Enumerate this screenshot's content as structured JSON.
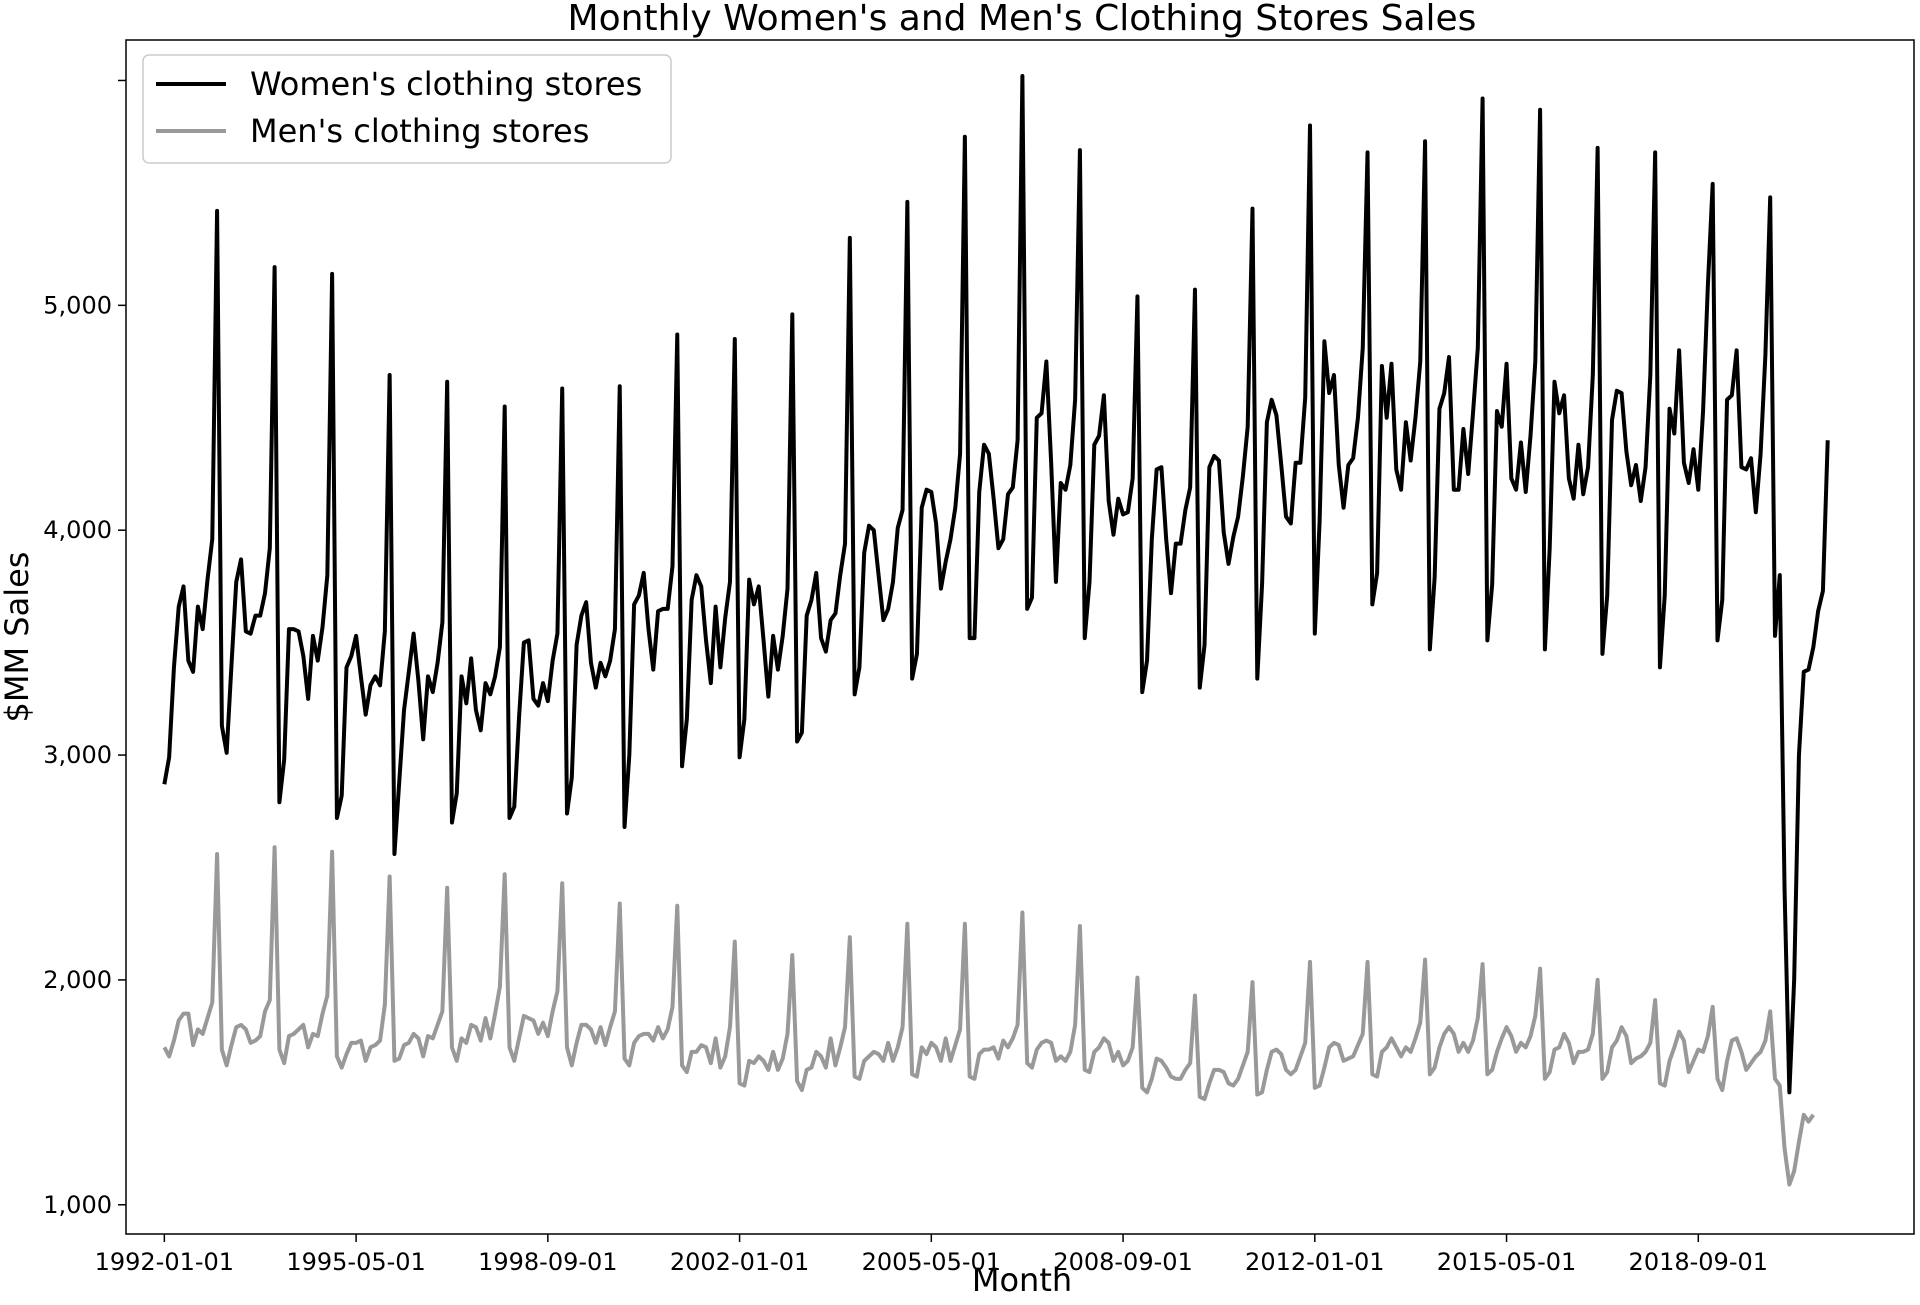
{
  "chart_data": {
    "type": "line",
    "title": "Monthly Women's and Men's Clothing Stores Sales",
    "xlabel": "Month",
    "ylabel": "$MM Sales",
    "x_start": "1992-01",
    "x_ticks": [
      "1992-01-01",
      "1995-05-01",
      "1998-09-01",
      "2002-01-01",
      "2005-05-01",
      "2008-09-01",
      "2012-01-01",
      "2015-05-01",
      "2018-09-01"
    ],
    "y_ticks": [
      1000,
      2000,
      3000,
      4000,
      5000
    ],
    "y_tick_labels": [
      "1,000",
      "2,000",
      "3,000",
      "4,000",
      "5,000"
    ],
    "ylim": [
      870,
      6180
    ],
    "xlim": [
      "1991-05",
      "2022-06"
    ],
    "grid": false,
    "legend_position": "top-left",
    "series": [
      {
        "name": "Women's clothing stores",
        "color": "#000000",
        "values": [
          2870,
          2990,
          3390,
          3660,
          3750,
          3420,
          3370,
          3660,
          3560,
          3780,
          3960,
          5420,
          3130,
          3010,
          3400,
          3770,
          3870,
          3550,
          3540,
          3620,
          3620,
          3720,
          3920,
          5170,
          2790,
          2980,
          3560,
          3560,
          3550,
          3440,
          3250,
          3530,
          3420,
          3570,
          3800,
          5140,
          2720,
          2820,
          3390,
          3440,
          3530,
          3350,
          3180,
          3310,
          3350,
          3310,
          3550,
          4690,
          2560,
          2880,
          3200,
          3370,
          3540,
          3330,
          3070,
          3350,
          3280,
          3410,
          3590,
          4660,
          2700,
          2830,
          3350,
          3230,
          3430,
          3200,
          3110,
          3320,
          3270,
          3350,
          3480,
          4550,
          2720,
          2770,
          3170,
          3500,
          3510,
          3250,
          3220,
          3320,
          3240,
          3420,
          3540,
          4630,
          2740,
          2900,
          3490,
          3620,
          3680,
          3410,
          3300,
          3410,
          3350,
          3420,
          3560,
          4640,
          2680,
          3000,
          3670,
          3710,
          3810,
          3560,
          3380,
          3640,
          3650,
          3650,
          3840,
          4870,
          2950,
          3160,
          3690,
          3800,
          3750,
          3510,
          3320,
          3660,
          3390,
          3610,
          3770,
          4850,
          2990,
          3160,
          3780,
          3670,
          3750,
          3510,
          3260,
          3530,
          3380,
          3530,
          3740,
          4960,
          3060,
          3100,
          3620,
          3690,
          3810,
          3520,
          3460,
          3600,
          3630,
          3800,
          3940,
          5300,
          3270,
          3390,
          3900,
          4020,
          4000,
          3800,
          3600,
          3650,
          3770,
          4010,
          4090,
          5460,
          3340,
          3450,
          4100,
          4180,
          4170,
          4030,
          3740,
          3860,
          3960,
          4100,
          4340,
          5750,
          3520,
          3520,
          4170,
          4380,
          4340,
          4140,
          3920,
          3960,
          4160,
          4190,
          4400,
          6020,
          3650,
          3700,
          4500,
          4520,
          4750,
          4300,
          3770,
          4210,
          4180,
          4290,
          4580,
          5690,
          3520,
          3770,
          4380,
          4420,
          4600,
          4130,
          3980,
          4140,
          4070,
          4080,
          4230,
          5040,
          3280,
          3420,
          3960,
          4270,
          4280,
          3960,
          3720,
          3940,
          3940,
          4090,
          4190,
          5070,
          3300,
          3490,
          4280,
          4330,
          4310,
          3990,
          3850,
          3970,
          4060,
          4240,
          4460,
          5430,
          3340,
          3760,
          4480,
          4580,
          4510,
          4290,
          4060,
          4030,
          4300,
          4300,
          4590,
          5800,
          3540,
          4040,
          4840,
          4610,
          4690,
          4290,
          4100,
          4290,
          4320,
          4500,
          4810,
          5680,
          3670,
          3810,
          4730,
          4500,
          4740,
          4270,
          4180,
          4480,
          4310,
          4500,
          4750,
          5730,
          3470,
          3790,
          4540,
          4610,
          4770,
          4180,
          4180,
          4450,
          4250,
          4520,
          4810,
          5920,
          3510,
          3760,
          4530,
          4460,
          4740,
          4230,
          4180,
          4390,
          4170,
          4420,
          4750,
          5870,
          3470,
          3920,
          4660,
          4520,
          4600,
          4230,
          4140,
          4380,
          4160,
          4280,
          4690,
          5700,
          3450,
          3710,
          4490,
          4620,
          4610,
          4350,
          4200,
          4290,
          4130,
          4280,
          4690,
          5680,
          3390,
          3710,
          4540,
          4430,
          4800,
          4300,
          4210,
          4360,
          4180,
          4530,
          5090,
          5540,
          3510,
          3690,
          4580,
          4600,
          4800,
          4280,
          4270,
          4320,
          4080,
          4340,
          4780,
          5480,
          3530,
          3800,
          2400,
          1500,
          2000,
          3000,
          3370,
          3380,
          3480,
          3640,
          3730,
          4400
        ]
      },
      {
        "name": "Men's clothing stores",
        "color": "#999999",
        "values": [
          1700,
          1660,
          1730,
          1820,
          1850,
          1850,
          1710,
          1780,
          1760,
          1830,
          1900,
          2560,
          1690,
          1620,
          1710,
          1790,
          1800,
          1780,
          1720,
          1730,
          1750,
          1860,
          1910,
          2590,
          1690,
          1630,
          1750,
          1760,
          1780,
          1800,
          1700,
          1760,
          1750,
          1850,
          1930,
          2570,
          1660,
          1610,
          1670,
          1720,
          1720,
          1730,
          1640,
          1700,
          1710,
          1730,
          1890,
          2460,
          1640,
          1650,
          1710,
          1720,
          1760,
          1740,
          1660,
          1750,
          1740,
          1800,
          1860,
          2410,
          1700,
          1640,
          1740,
          1720,
          1800,
          1790,
          1730,
          1830,
          1740,
          1850,
          1970,
          2470,
          1700,
          1640,
          1740,
          1840,
          1830,
          1820,
          1760,
          1810,
          1750,
          1860,
          1950,
          2430,
          1700,
          1620,
          1720,
          1800,
          1800,
          1780,
          1720,
          1790,
          1710,
          1790,
          1860,
          2340,
          1650,
          1620,
          1720,
          1750,
          1760,
          1760,
          1730,
          1790,
          1740,
          1780,
          1880,
          2330,
          1620,
          1590,
          1680,
          1680,
          1710,
          1700,
          1630,
          1740,
          1610,
          1660,
          1790,
          2170,
          1540,
          1530,
          1640,
          1630,
          1660,
          1640,
          1600,
          1680,
          1600,
          1650,
          1760,
          2110,
          1550,
          1510,
          1600,
          1610,
          1680,
          1660,
          1610,
          1740,
          1620,
          1700,
          1790,
          2190,
          1570,
          1560,
          1640,
          1660,
          1680,
          1670,
          1640,
          1720,
          1640,
          1700,
          1790,
          2250,
          1580,
          1570,
          1700,
          1670,
          1720,
          1700,
          1640,
          1740,
          1640,
          1710,
          1780,
          2250,
          1570,
          1560,
          1670,
          1690,
          1690,
          1700,
          1650,
          1730,
          1700,
          1740,
          1800,
          2300,
          1630,
          1610,
          1690,
          1720,
          1730,
          1720,
          1640,
          1660,
          1640,
          1680,
          1800,
          2240,
          1600,
          1590,
          1680,
          1700,
          1740,
          1720,
          1640,
          1680,
          1620,
          1640,
          1700,
          2010,
          1520,
          1500,
          1560,
          1650,
          1640,
          1610,
          1570,
          1560,
          1560,
          1600,
          1630,
          1930,
          1480,
          1470,
          1540,
          1600,
          1600,
          1590,
          1540,
          1530,
          1560,
          1620,
          1680,
          1990,
          1490,
          1500,
          1600,
          1680,
          1690,
          1670,
          1600,
          1580,
          1600,
          1660,
          1720,
          2080,
          1520,
          1530,
          1610,
          1700,
          1720,
          1710,
          1640,
          1650,
          1660,
          1710,
          1760,
          2080,
          1580,
          1570,
          1680,
          1700,
          1740,
          1700,
          1660,
          1700,
          1680,
          1740,
          1810,
          2090,
          1580,
          1610,
          1700,
          1760,
          1790,
          1760,
          1680,
          1720,
          1680,
          1730,
          1830,
          2070,
          1580,
          1600,
          1680,
          1740,
          1790,
          1750,
          1680,
          1720,
          1700,
          1750,
          1840,
          2050,
          1560,
          1590,
          1690,
          1700,
          1760,
          1720,
          1630,
          1680,
          1680,
          1690,
          1760,
          2000,
          1560,
          1590,
          1700,
          1730,
          1790,
          1750,
          1630,
          1650,
          1660,
          1680,
          1720,
          1910,
          1540,
          1530,
          1640,
          1700,
          1770,
          1730,
          1590,
          1640,
          1690,
          1680,
          1750,
          1880,
          1560,
          1510,
          1640,
          1730,
          1740,
          1680,
          1600,
          1630,
          1660,
          1680,
          1730,
          1860,
          1560,
          1530,
          1250,
          1090,
          1150,
          1280,
          1400,
          1370,
          1400
        ]
      }
    ]
  }
}
